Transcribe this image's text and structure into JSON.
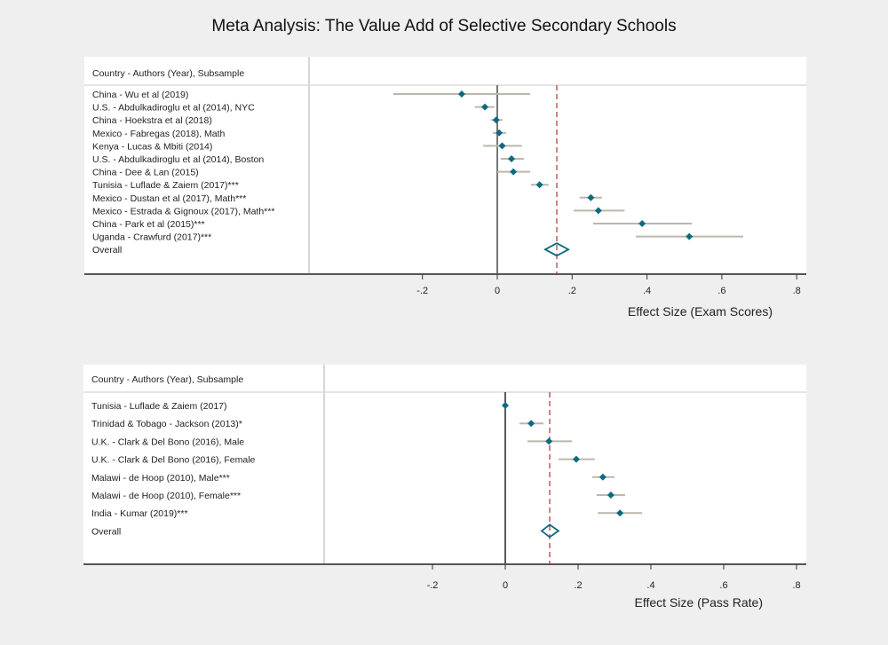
{
  "title": "Meta Analysis: The Value Add of Selective Secondary Schools",
  "colors": {
    "background": "#efefef",
    "panel": "#ffffff",
    "point": "#0c6a80",
    "ci": "#bdb6ac",
    "overall_line": "#a8323a",
    "zero_line": "#777777"
  },
  "chart_data": [
    {
      "type": "scatter",
      "subtype": "forest-plot",
      "column_header": "Country - Authors (Year), Subsample",
      "xlabel": "Effect Size (Exam Scores)",
      "xlim": [
        -0.3,
        0.82
      ],
      "xticks": [
        -0.2,
        0,
        0.2,
        0.4,
        0.6,
        0.8
      ],
      "xtick_labels": [
        "-.2",
        "0",
        ".2",
        ".4",
        ".6",
        ".8"
      ],
      "studies": [
        {
          "label": "China - Wu et al (2019)",
          "effect": -0.095,
          "ci": [
            -0.278,
            0.088
          ]
        },
        {
          "label": "U.S. - Abdulkadiroglu et al (2014), NYC",
          "effect": -0.033,
          "ci": [
            -0.06,
            -0.007
          ]
        },
        {
          "label": "China - Hoekstra et al (2018)",
          "effect": -0.003,
          "ci": [
            -0.017,
            0.014
          ]
        },
        {
          "label": "Mexico - Fabregas (2018), Math",
          "effect": 0.005,
          "ci": [
            -0.012,
            0.024
          ]
        },
        {
          "label": "Kenya - Lucas & Mbiti (2014)",
          "effect": 0.013,
          "ci": [
            -0.038,
            0.066
          ]
        },
        {
          "label": "U.S. - Abdulkadiroglu et al (2014), Boston",
          "effect": 0.038,
          "ci": [
            0.009,
            0.071
          ]
        },
        {
          "label": "China - Dee & Lan (2015)",
          "effect": 0.043,
          "ci": [
            0.0,
            0.088
          ]
        },
        {
          "label": "Tunisia - Luflade & Zaiem (2017)***",
          "effect": 0.113,
          "ci": [
            0.09,
            0.137
          ]
        },
        {
          "label": "Mexico - Dustan et al (2017), Math***",
          "effect": 0.25,
          "ci": [
            0.22,
            0.28
          ]
        },
        {
          "label": "Mexico - Estrada & Gignoux (2017), Math***",
          "effect": 0.27,
          "ci": [
            0.204,
            0.34
          ]
        },
        {
          "label": "China - Park et al (2015)***",
          "effect": 0.387,
          "ci": [
            0.256,
            0.52
          ]
        },
        {
          "label": "Uganda - Crawfurd (2017)***",
          "effect": 0.513,
          "ci": [
            0.37,
            0.657
          ]
        }
      ],
      "overall": {
        "label": "Overall",
        "effect": 0.159,
        "ci": [
          0.128,
          0.19
        ]
      }
    },
    {
      "type": "scatter",
      "subtype": "forest-plot",
      "column_header": "Country - Authors (Year), Subsample",
      "xlabel": "Effect Size (Pass Rate)",
      "xlim": [
        -0.29,
        0.8
      ],
      "xticks": [
        -0.2,
        0,
        0.2,
        0.4,
        0.6,
        0.8
      ],
      "xtick_labels": [
        "-.2",
        "0",
        ".2",
        ".4",
        ".6",
        ".8"
      ],
      "studies": [
        {
          "label": "Tunisia - Luflade & Zaiem (2017)",
          "effect": 0.0,
          "ci": [
            -0.003,
            0.003
          ]
        },
        {
          "label": "Trinidad & Tobago - Jackson (2013)*",
          "effect": 0.071,
          "ci": [
            0.039,
            0.105
          ]
        },
        {
          "label": "U.K. - Clark & Del Bono (2016), Male",
          "effect": 0.12,
          "ci": [
            0.061,
            0.183
          ]
        },
        {
          "label": "U.K. - Clark & Del Bono (2016), Female",
          "effect": 0.195,
          "ci": [
            0.146,
            0.246
          ]
        },
        {
          "label": "Malawi - de Hoop (2010), Male***",
          "effect": 0.268,
          "ci": [
            0.239,
            0.3
          ]
        },
        {
          "label": "Malawi - de Hoop (2010), Female***",
          "effect": 0.29,
          "ci": [
            0.251,
            0.329
          ]
        },
        {
          "label": "India - Kumar (2019)***",
          "effect": 0.315,
          "ci": [
            0.254,
            0.376
          ]
        }
      ],
      "overall": {
        "label": "Overall",
        "effect": 0.122,
        "ci": [
          0.1,
          0.146
        ]
      }
    }
  ]
}
